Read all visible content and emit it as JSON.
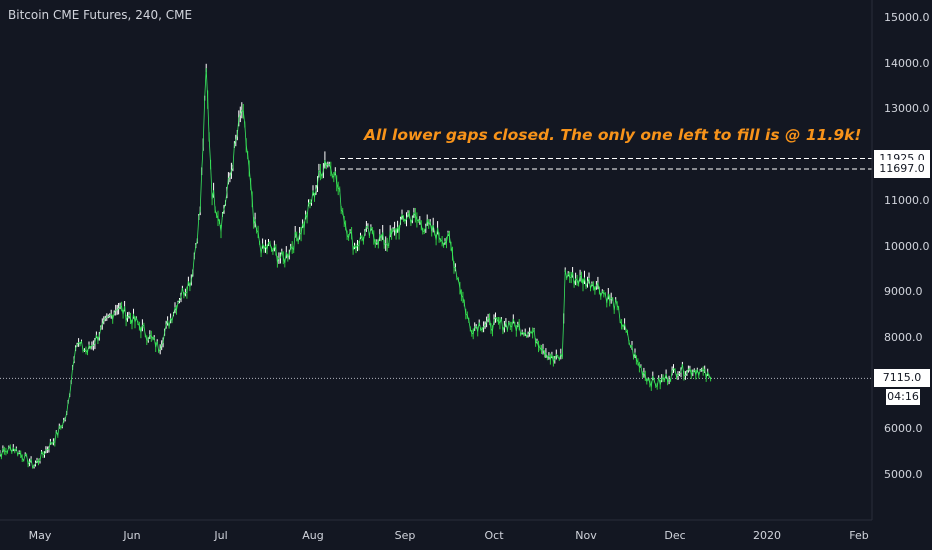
{
  "chart_data": {
    "type": "line",
    "title": "Bitcoin CME Futures, 240, CME",
    "annotation": "All lower gaps closed. The only one left to fill is @ 11.9k!",
    "xlabel": "",
    "ylabel": "",
    "ylim": [
      4000,
      15400
    ],
    "x_ticks": [
      "May",
      "Jun",
      "Jul",
      "Aug",
      "Sep",
      "Oct",
      "Nov",
      "Dec",
      "2020",
      "Feb"
    ],
    "y_ticks": [
      "15000.0",
      "14000.0",
      "13000.0",
      "12000.0",
      "11000.0",
      "10000.0",
      "9000.0",
      "8000.0",
      "7000.0",
      "6000.0",
      "5000.0"
    ],
    "gap_levels": [
      {
        "value": 11925,
        "label": "11925.0"
      },
      {
        "value": 11697,
        "label": "11697.0"
      }
    ],
    "last_price": {
      "value": 7115,
      "label": "7115.0"
    },
    "countdown": "04:16",
    "x": [
      "2019-04-15",
      "2019-04-22",
      "2019-04-29",
      "2019-05-06",
      "2019-05-10",
      "2019-05-13",
      "2019-05-17",
      "2019-05-20",
      "2019-05-27",
      "2019-06-03",
      "2019-06-10",
      "2019-06-17",
      "2019-06-21",
      "2019-06-24",
      "2019-06-26",
      "2019-06-28",
      "2019-07-01",
      "2019-07-04",
      "2019-07-08",
      "2019-07-10",
      "2019-07-12",
      "2019-07-15",
      "2019-07-17",
      "2019-07-22",
      "2019-07-29",
      "2019-08-05",
      "2019-08-08",
      "2019-08-12",
      "2019-08-15",
      "2019-08-19",
      "2019-08-26",
      "2019-09-02",
      "2019-09-09",
      "2019-09-16",
      "2019-09-23",
      "2019-09-26",
      "2019-09-30",
      "2019-10-07",
      "2019-10-14",
      "2019-10-21",
      "2019-10-24",
      "2019-10-25",
      "2019-10-28",
      "2019-11-04",
      "2019-11-11",
      "2019-11-18",
      "2019-11-22",
      "2019-11-25",
      "2019-12-02",
      "2019-12-09",
      "2019-12-13"
    ],
    "series": [
      {
        "values": [
          5400,
          5600,
          5200,
          5800,
          6300,
          7900,
          7700,
          8000,
          8700,
          8300,
          7800,
          8900,
          9300,
          10800,
          13800,
          11200,
          10500,
          11500,
          13000,
          12000,
          10500,
          9900,
          10000,
          9700,
          10500,
          11900,
          11700,
          10500,
          10000,
          10300,
          10100,
          10700,
          10400,
          10100,
          8200,
          8300,
          8300,
          8300,
          8100,
          7500,
          7600,
          9400,
          9300,
          9200,
          8700,
          7500,
          7100,
          7000,
          7300,
          7300,
          7100
        ]
      }
    ]
  }
}
